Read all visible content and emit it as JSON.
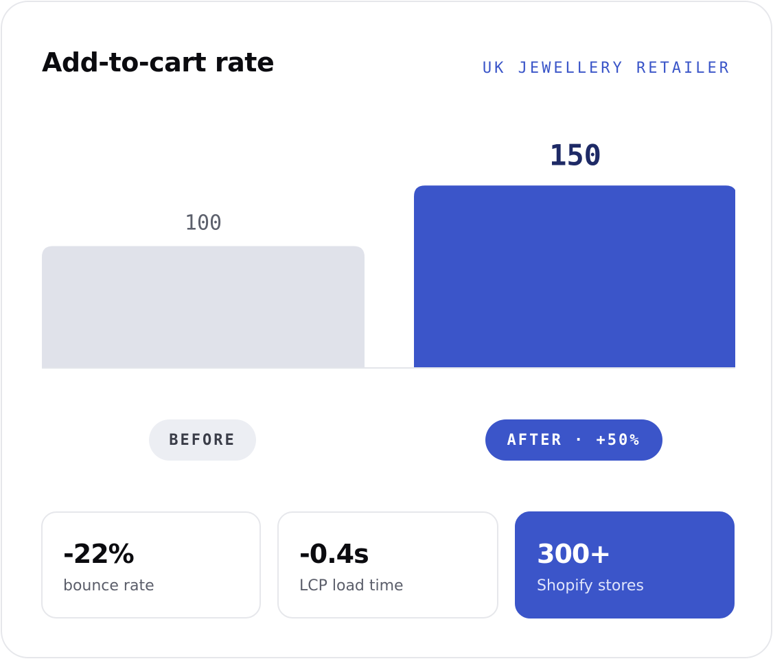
{
  "card": {
    "title": "Add-to-cart rate",
    "tag": "UK JEWELLERY RETAILER"
  },
  "chart_data": {
    "type": "bar",
    "categories": [
      "BEFORE",
      "AFTER"
    ],
    "values": [
      100,
      150
    ],
    "value_labels": [
      "100",
      "150"
    ],
    "ylim": [
      0,
      170
    ],
    "grid": false,
    "colors": [
      "#e0e2ea",
      "#3b55c9"
    ],
    "label_colors": [
      "#5c606c",
      "#1e2a66"
    ]
  },
  "pills": {
    "before": "BEFORE",
    "after": "AFTER · +50%"
  },
  "stats": [
    {
      "value": "-22%",
      "label": "bounce rate"
    },
    {
      "value": "-0.4s",
      "label": "LCP load time"
    },
    {
      "value": "300+",
      "label": "Shopify stores"
    }
  ],
  "colors": {
    "accent": "#3b55c9",
    "muted_bar": "#e0e2ea"
  }
}
